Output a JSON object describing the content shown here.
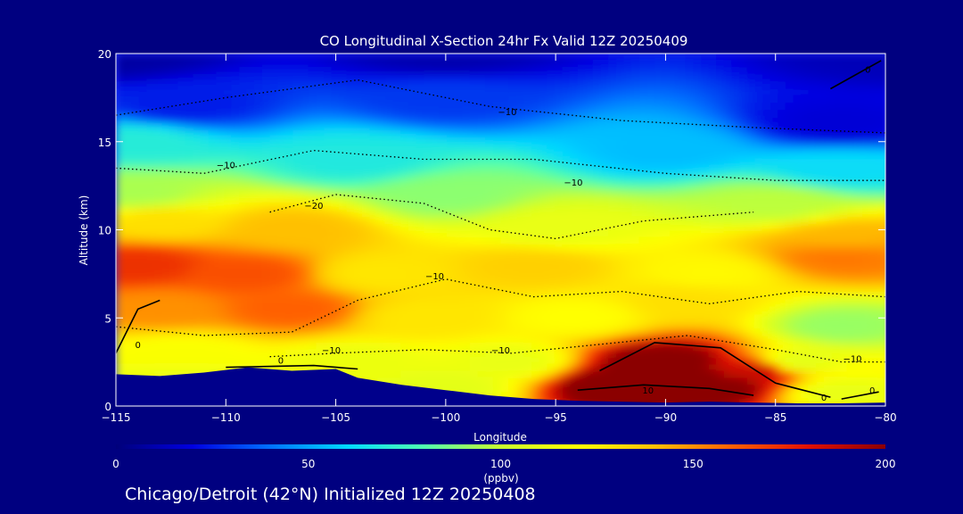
{
  "chart_data": {
    "type": "heatmap",
    "title": "CO Longitudinal X-Section 24hr  Fx Valid 12Z 20250409",
    "xlabel": "Longitude",
    "ylabel": "Altitude (km)",
    "xlim": [
      -115,
      -80
    ],
    "ylim": [
      0,
      20
    ],
    "x_ticks": [
      -115,
      -110,
      -105,
      -100,
      -95,
      -90,
      -85,
      -80
    ],
    "x_tick_labels": [
      "−115",
      "−110",
      "−105",
      "−100",
      "−95",
      "−90",
      "−85",
      "−80"
    ],
    "y_ticks": [
      0,
      5,
      10,
      15,
      20
    ],
    "y_tick_labels": [
      "0",
      "5",
      "10",
      "15",
      "20"
    ],
    "colorbar": {
      "min": 0,
      "max": 200,
      "ticks": [
        0,
        50,
        100,
        150,
        200
      ],
      "tick_labels": [
        "0",
        "50",
        "100",
        "150",
        "200"
      ],
      "unit_label": "(ppbv)",
      "colors": [
        "#00007a",
        "#0000e0",
        "#0070ff",
        "#00d8ff",
        "#50ffb0",
        "#c8ff30",
        "#ffff00",
        "#ffc000",
        "#ff6000",
        "#e01000",
        "#8b0000"
      ]
    },
    "field_points": [
      {
        "lon": -115,
        "alt": 20,
        "co": 8
      },
      {
        "lon": -100,
        "alt": 20,
        "co": 10
      },
      {
        "lon": -80,
        "alt": 20,
        "co": 12
      },
      {
        "lon": -112,
        "alt": 17,
        "co": 25
      },
      {
        "lon": -100,
        "alt": 17.5,
        "co": 30
      },
      {
        "lon": -82,
        "alt": 16,
        "co": 18
      },
      {
        "lon": -114,
        "alt": 15,
        "co": 70
      },
      {
        "lon": -104,
        "alt": 14,
        "co": 68
      },
      {
        "lon": -90,
        "alt": 14.5,
        "co": 55
      },
      {
        "lon": -82,
        "alt": 13.5,
        "co": 62
      },
      {
        "lon": -114,
        "alt": 12,
        "co": 95
      },
      {
        "lon": -100,
        "alt": 12,
        "co": 90
      },
      {
        "lon": -85,
        "alt": 11.5,
        "co": 98
      },
      {
        "lon": -113,
        "alt": 10.5,
        "co": 130
      },
      {
        "lon": -107,
        "alt": 10,
        "co": 140
      },
      {
        "lon": -95,
        "alt": 10,
        "co": 112
      },
      {
        "lon": -82,
        "alt": 9.5,
        "co": 142
      },
      {
        "lon": -114,
        "alt": 8,
        "co": 172
      },
      {
        "lon": -109,
        "alt": 7.5,
        "co": 164
      },
      {
        "lon": -103,
        "alt": 7.5,
        "co": 128
      },
      {
        "lon": -96,
        "alt": 8,
        "co": 135
      },
      {
        "lon": -88,
        "alt": 7.5,
        "co": 122
      },
      {
        "lon": -82,
        "alt": 8.5,
        "co": 155
      },
      {
        "lon": -113,
        "alt": 5.5,
        "co": 150
      },
      {
        "lon": -107,
        "alt": 5.5,
        "co": 160
      },
      {
        "lon": -101,
        "alt": 5,
        "co": 128
      },
      {
        "lon": -94,
        "alt": 5,
        "co": 120
      },
      {
        "lon": -89,
        "alt": 6,
        "co": 130
      },
      {
        "lon": -82,
        "alt": 4.5,
        "co": 92
      },
      {
        "lon": -112,
        "alt": 3,
        "co": 118
      },
      {
        "lon": -104,
        "alt": 2.5,
        "co": 113
      },
      {
        "lon": -97,
        "alt": 2.5,
        "co": 112
      },
      {
        "lon": -84,
        "alt": 2.5,
        "co": 110
      },
      {
        "lon": -90,
        "alt": 2.5,
        "co": 205
      },
      {
        "lon": -92,
        "alt": 1.2,
        "co": 210
      },
      {
        "lon": -88,
        "alt": 1.2,
        "co": 210
      },
      {
        "lon": -86,
        "alt": 2,
        "co": 185
      },
      {
        "lon": -112,
        "alt": 1.2,
        "co": 112
      },
      {
        "lon": -100,
        "alt": 1,
        "co": 110
      },
      {
        "lon": -82,
        "alt": 0.8,
        "co": 112
      }
    ],
    "terrain": [
      [
        -115,
        1.8
      ],
      [
        -113,
        1.7
      ],
      [
        -111,
        1.9
      ],
      [
        -109,
        2.2
      ],
      [
        -107,
        2.0
      ],
      [
        -105,
        2.1
      ],
      [
        -104,
        1.6
      ],
      [
        -102,
        1.2
      ],
      [
        -100,
        0.9
      ],
      [
        -98,
        0.6
      ],
      [
        -96,
        0.4
      ],
      [
        -94,
        0.3
      ],
      [
        -92,
        0.25
      ],
      [
        -90,
        0.2
      ],
      [
        -88,
        0.25
      ],
      [
        -86,
        0.2
      ],
      [
        -84,
        0.15
      ],
      [
        -82,
        0.15
      ],
      [
        -80,
        0.2
      ]
    ],
    "contour_labels": [
      {
        "text": "0",
        "lon": -80.8,
        "alt": 18.9
      },
      {
        "text": "−10",
        "lon": -97.2,
        "alt": 16.5
      },
      {
        "text": "−10",
        "lon": -110,
        "alt": 13.5
      },
      {
        "text": "−10",
        "lon": -94.2,
        "alt": 12.5
      },
      {
        "text": "−20",
        "lon": -106,
        "alt": 11.2
      },
      {
        "text": "−10",
        "lon": -100.5,
        "alt": 7.2
      },
      {
        "text": "0",
        "lon": -114,
        "alt": 3.3
      },
      {
        "text": "0",
        "lon": -107.5,
        "alt": 2.4
      },
      {
        "text": "−10",
        "lon": -105.2,
        "alt": 3.0
      },
      {
        "text": "−10",
        "lon": -97.5,
        "alt": 3.0
      },
      {
        "text": "−10",
        "lon": -81.5,
        "alt": 2.5
      },
      {
        "text": "10",
        "lon": -90.8,
        "alt": 0.7
      },
      {
        "text": "0",
        "lon": -82.8,
        "alt": 0.3
      },
      {
        "text": "0",
        "lon": -80.6,
        "alt": 0.7
      }
    ]
  },
  "footer": "Chicago/Detroit (42°N) Initialized 12Z 20250408"
}
